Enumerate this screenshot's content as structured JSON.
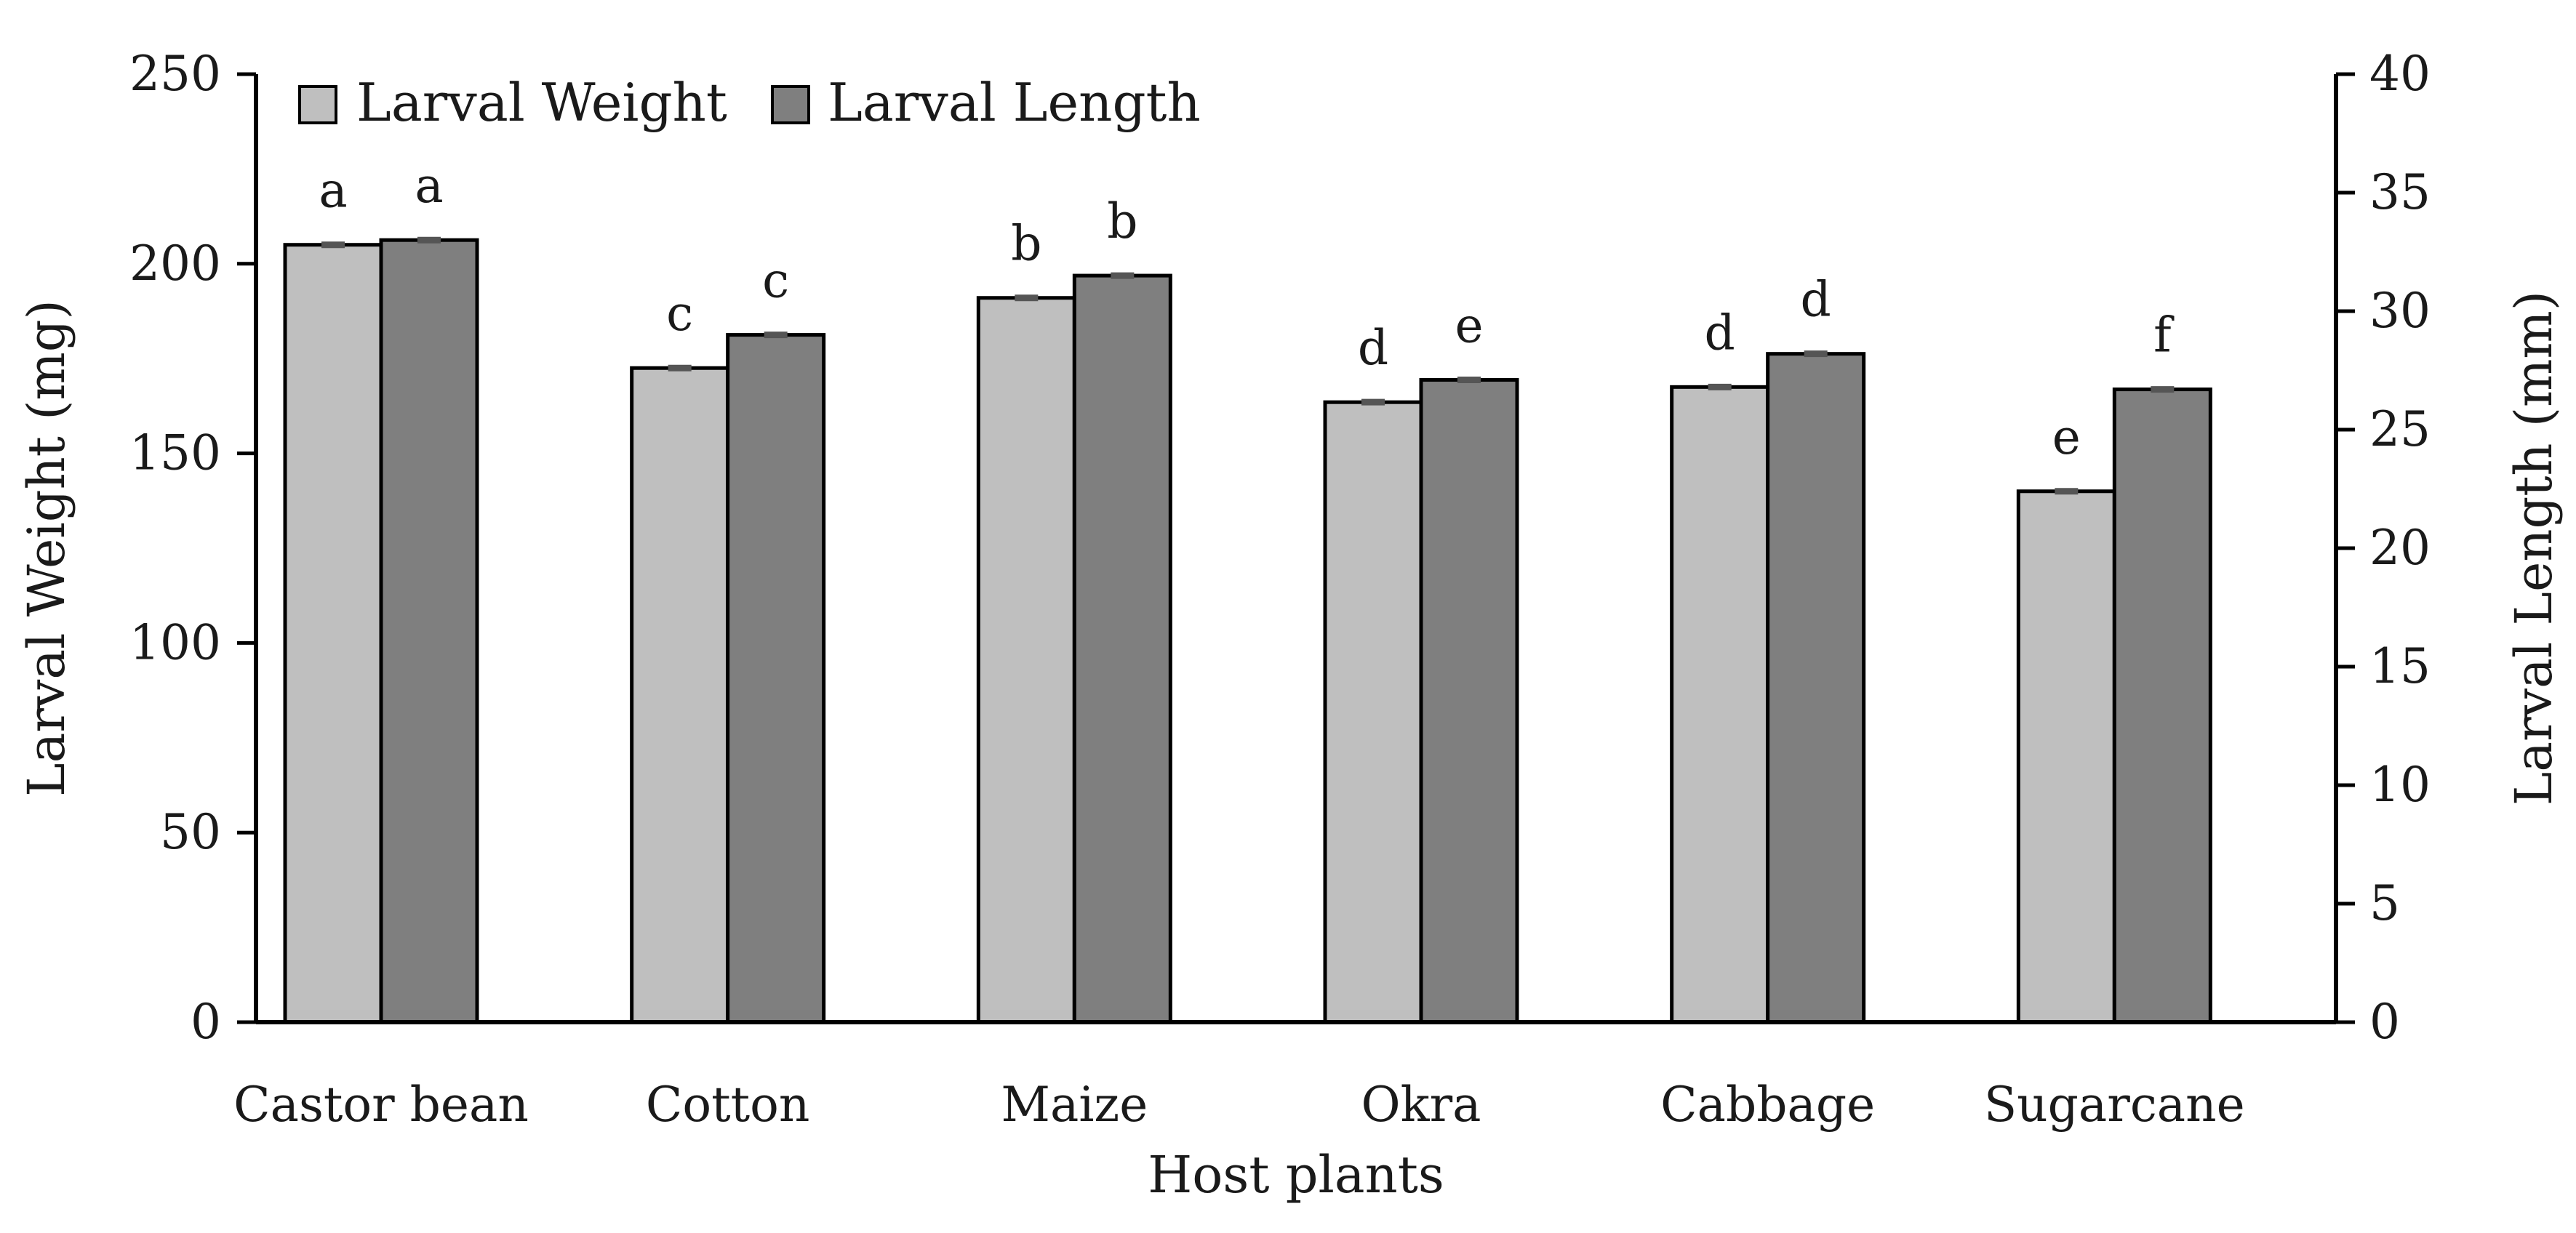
{
  "chart_data": {
    "type": "bar",
    "xlabel": "Host plants",
    "categories": [
      "Castor bean",
      "Cotton",
      "Maize",
      "Okra",
      "Cabbage",
      "Sugarcane"
    ],
    "y_left": {
      "label": "Larval Weight (mg)",
      "range": [
        0,
        250
      ],
      "ticks": [
        0,
        50,
        100,
        150,
        200,
        250
      ]
    },
    "y_right": {
      "label": "Larval Length (mm)",
      "range": [
        0,
        40
      ],
      "ticks": [
        0,
        5,
        10,
        15,
        20,
        25,
        30,
        35,
        40
      ]
    },
    "legend_position": "top-left",
    "grid": false,
    "series": [
      {
        "name": "Larval Weight",
        "axis": "left",
        "color": "#bfbfbf",
        "values": [
          205,
          172.5,
          191,
          163.5,
          167.5,
          140
        ],
        "labels": [
          "a",
          "c",
          "b",
          "d",
          "d",
          "e"
        ]
      },
      {
        "name": "Larval Length",
        "axis": "right",
        "color": "#7f7f7f",
        "values": [
          33,
          29,
          31.5,
          27.1,
          28.2,
          26.7
        ],
        "labels": [
          "a",
          "c",
          "b",
          "e",
          "d",
          "f"
        ]
      }
    ]
  }
}
